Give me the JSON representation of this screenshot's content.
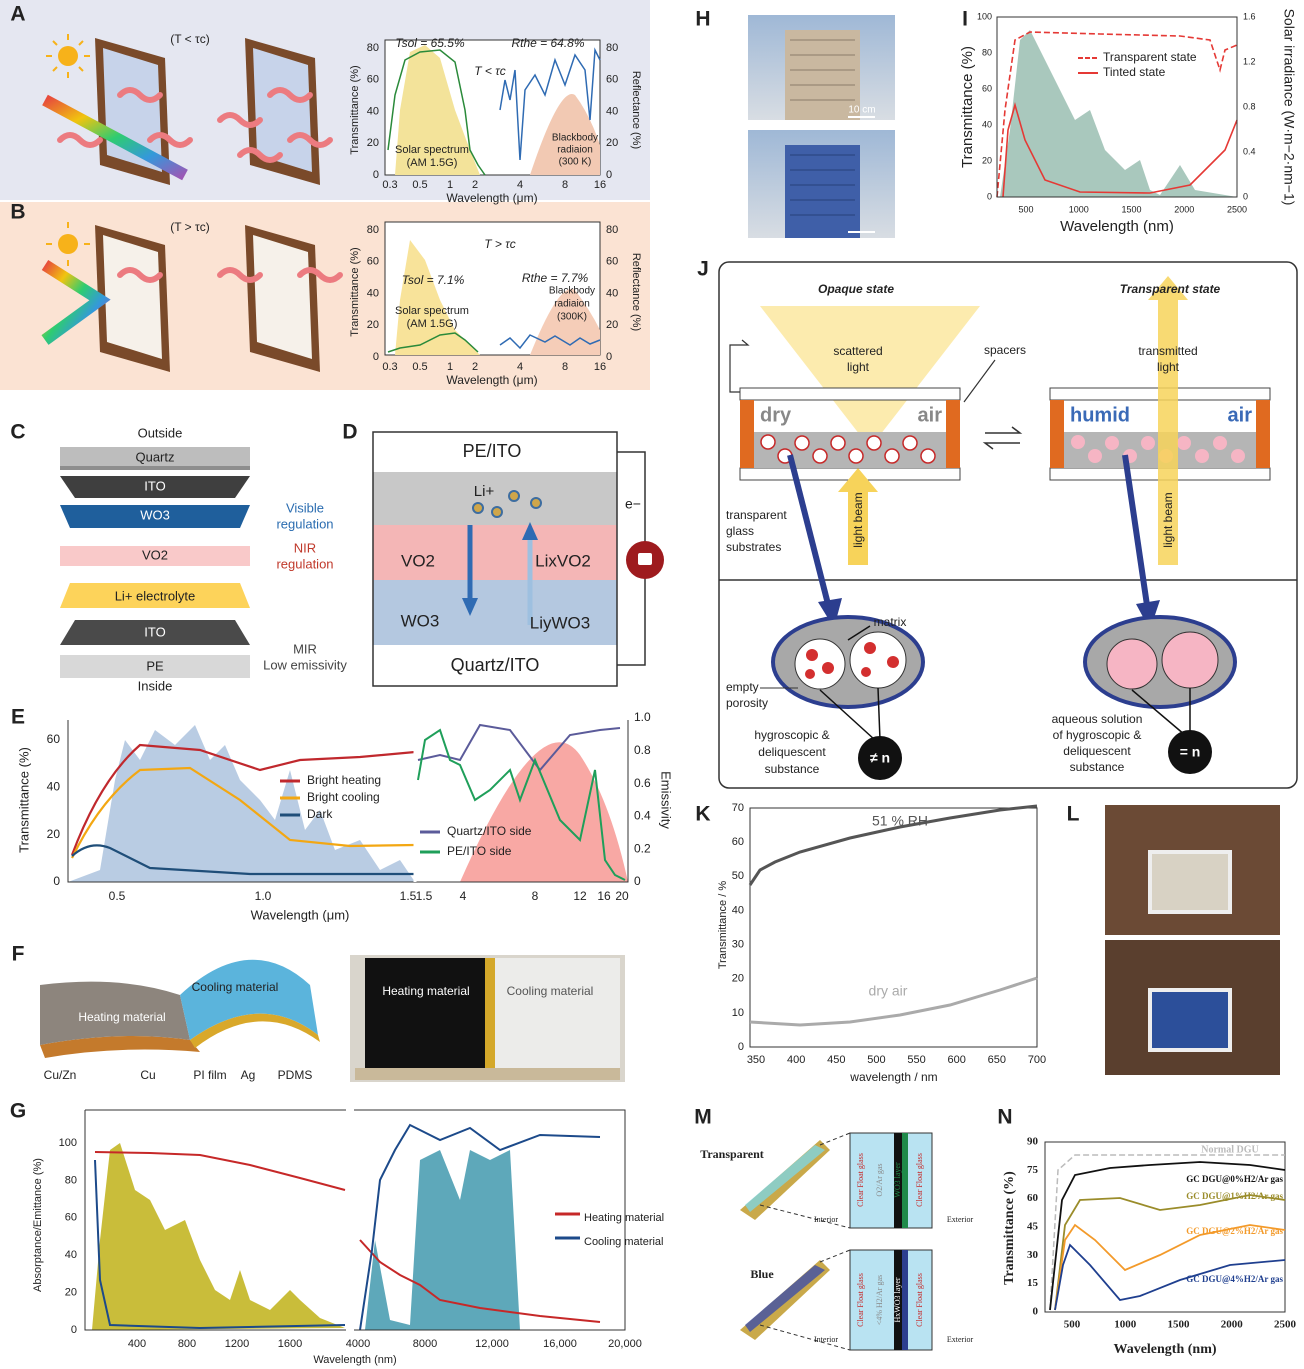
{
  "panels": {
    "A": {
      "label": "A",
      "condition": "(T < τc)",
      "t_sol": "Tsol = 65.5%",
      "r_the": "Rthe = 64.8%",
      "inset": "T < τc",
      "y_label": "Transmittance (%)",
      "y2_label": "Reflectance (%)",
      "x_label": "Wavelength (μm)",
      "solar": [
        "Solar spectrum",
        "(AM 1.5G)"
      ],
      "blackbody": [
        "Blackbody",
        "radiaion",
        "(300 K)"
      ],
      "xticks": [
        "0.3",
        "0.5",
        "1",
        "2",
        "4",
        "8",
        "16"
      ],
      "yticks": [
        "0",
        "20",
        "40",
        "60",
        "80"
      ],
      "y2ticks": [
        "0",
        "20",
        "40",
        "60",
        "80"
      ]
    },
    "B": {
      "label": "B",
      "condition": "(T > τc)",
      "t_sol": "Tsol = 7.1%",
      "r_the": "Rthe = 7.7%",
      "inset": "T > τc",
      "y_label": "Transmittance (%)",
      "y2_label": "Reflectance (%)",
      "x_label": "Wavelength (μm)",
      "solar": [
        "Solar spectrum",
        "(AM 1.5G)"
      ],
      "blackbody": [
        "Blackbody",
        "radiaion",
        "(300K)"
      ],
      "xticks": [
        "0.3",
        "0.5",
        "1",
        "2",
        "4",
        "8",
        "16"
      ],
      "yticks": [
        "0",
        "20",
        "40",
        "60",
        "80"
      ],
      "y2ticks": [
        "0",
        "20",
        "40",
        "60",
        "80"
      ]
    },
    "C": {
      "label": "C",
      "outside": "Outside",
      "layers": [
        "Quartz",
        "ITO",
        "WO3",
        "VO2",
        "Li+ electrolyte",
        "ITO",
        "PE"
      ],
      "inside": "Inside",
      "visible": [
        "Visible",
        "regulation"
      ],
      "nir": [
        "NIR",
        "regulation"
      ],
      "mir": [
        "MIR",
        "Low emissivity"
      ]
    },
    "D": {
      "label": "D",
      "top": "PE/ITO",
      "ion": "Li+",
      "vo2": "VO2",
      "lixvo2": "LixVO2",
      "wo3": "WO3",
      "liywo3": "LiyWO3",
      "bottom": "Quartz/ITO",
      "electron": "e−"
    },
    "E": {
      "label": "E",
      "y_label": "Transmittance (%)",
      "yticks": [
        "0",
        "20",
        "40",
        "60"
      ],
      "xticks": [
        "0.5",
        "1.0",
        "1.5"
      ],
      "x2ticks": [
        "1.5",
        "4",
        "8",
        "12",
        "16",
        "20"
      ],
      "x_label": "Wavelength (μm)",
      "y2_label": "Emissivity",
      "y2ticks": [
        "0",
        "0.2",
        "0.4",
        "0.6",
        "0.8",
        "1.0"
      ],
      "legend": [
        "Bright heating",
        "Bright cooling",
        "Dark"
      ],
      "legend2": [
        "Quartz/ITO side",
        "PE/ITO side"
      ]
    },
    "F": {
      "label": "F",
      "heating": "Heating material",
      "cooling": "Cooling material",
      "layers": [
        "Cu/Zn",
        "Cu",
        "PI film",
        "Ag",
        "PDMS"
      ],
      "photo": [
        "Heating material",
        "Cooling material"
      ]
    },
    "G": {
      "label": "G",
      "y_label": "Absorptance/Emittance (%)",
      "yticks": [
        "0",
        "20",
        "40",
        "60",
        "80",
        "100"
      ],
      "xticks": [
        "400",
        "800",
        "1200",
        "1600",
        "4000",
        "8000",
        "12,000",
        "16,000",
        "20,000"
      ],
      "x_label": "Wavelength (nm)",
      "legend": [
        "Heating material",
        "Cooling material"
      ]
    },
    "H": {
      "label": "H",
      "scale": "10 cm"
    },
    "I": {
      "label": "I",
      "y_label": "Transmittance (%)",
      "yticks": [
        "0",
        "20",
        "40",
        "60",
        "80",
        "100"
      ],
      "y2_label": "Solar irradiance (W·m−2·nm−1)",
      "y2ticks": [
        "0",
        "0.4",
        "0.8",
        "1.2",
        "1.6"
      ],
      "xticks": [
        "500",
        "1000",
        "1500",
        "2000",
        "2500"
      ],
      "x_label": "Wavelength (nm)",
      "legend": [
        "Transparent state",
        "Tinted state"
      ]
    },
    "J": {
      "label": "J",
      "opaque": "Opaque state",
      "transparent": "Transparent state",
      "scattered": [
        "scattered",
        "light"
      ],
      "spacers": "spacers",
      "dry": "dry",
      "air": "air",
      "humid": "humid",
      "air2": "air",
      "transmitted": [
        "transmitted",
        "light"
      ],
      "substrates": [
        "transparent",
        "glass",
        "substrates"
      ],
      "beam": "light beam",
      "beam2": "light beam",
      "matrix": "matrix",
      "porosity": [
        "empty",
        "porosity"
      ],
      "substance": [
        "hygroscopic &",
        "deliquescent",
        "substance"
      ],
      "neq": "≠ n",
      "solution": [
        "aqueous solution",
        "of hygroscopic &",
        "deliquescent",
        "substance"
      ],
      "eq": "= n"
    },
    "K": {
      "label": "K",
      "rh": "51 % RH",
      "dry": "dry air",
      "y_label": "Transmittance / %",
      "yticks": [
        "0",
        "10",
        "20",
        "30",
        "40",
        "50",
        "60",
        "70"
      ],
      "xticks": [
        "350",
        "400",
        "450",
        "500",
        "550",
        "600",
        "650",
        "700"
      ],
      "x_label": "wavelength / nm"
    },
    "L": {
      "label": "L"
    },
    "M": {
      "label": "M",
      "states": [
        "Transparent",
        "Blue"
      ],
      "interior": "Interior",
      "exterior": "Exterior",
      "interior2": "Interior",
      "exterior2": "Exterior",
      "top_layers": [
        "Clear Float glass",
        "O2/Ar gas",
        "WO3 layer",
        "Clear Float glass"
      ],
      "bottom_layers": [
        "Clear Float glass",
        "<4% H2/Ar gas",
        "HxWO3 layer",
        "Clear Float glass"
      ]
    },
    "N": {
      "label": "N",
      "reference": "Normal DGU",
      "legend": [
        "GC DGU@0%H2/Ar gas",
        "GC DGU@1%H2/Ar gas",
        "GC DGU@2%H2/Ar gas",
        "GC DGU@4%H2/Ar gas"
      ],
      "y_label": "Transmittance (%)",
      "yticks": [
        "0",
        "15",
        "30",
        "45",
        "60",
        "75",
        "90"
      ],
      "xticks": [
        "500",
        "1000",
        "1500",
        "2000",
        "2500"
      ],
      "x_label": "Wavelength (nm)"
    }
  }
}
